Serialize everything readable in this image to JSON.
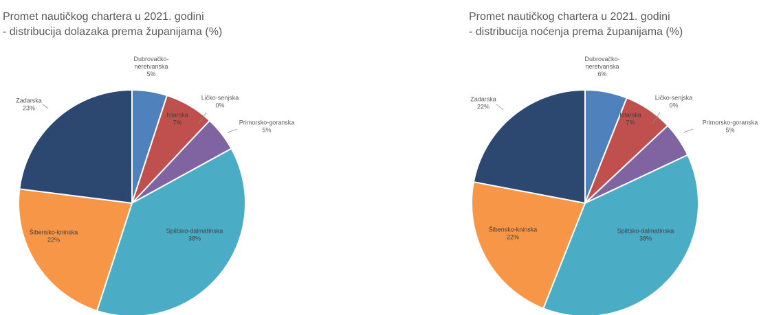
{
  "chart_data": [
    {
      "type": "pie",
      "title": [
        "Promet nautičkog chartera u 2021. godini",
        "- distribucija dolazaka prema županijama (%)"
      ],
      "slices": [
        {
          "name_lines": [
            "Dubrovačko-",
            "neretvanska"
          ],
          "value": 5,
          "label": "5%",
          "color": "#4f81bd"
        },
        {
          "name_lines": [
            "Istarska"
          ],
          "value": 7,
          "label": "7%",
          "color": "#c0504d"
        },
        {
          "name_lines": [
            "Ličko-senjska"
          ],
          "value": 0,
          "label": "0%",
          "color": "#9bbb59"
        },
        {
          "name_lines": [
            "Primorsko-goranska"
          ],
          "value": 5,
          "label": "5%",
          "color": "#8064a2"
        },
        {
          "name_lines": [
            "Splitsko-dalmatinska"
          ],
          "value": 38,
          "label": "38%",
          "color": "#4bacc6"
        },
        {
          "name_lines": [
            "Šibensko-kninska"
          ],
          "value": 22,
          "label": "22%",
          "color": "#f79646"
        },
        {
          "name_lines": [
            "Zadarska"
          ],
          "value": 23,
          "label": "23%",
          "color": "#2c4770"
        }
      ]
    },
    {
      "type": "pie",
      "title": [
        "Promet nautičkog chartera u 2021. godini",
        "- distribucija noćenja prema županijama (%)"
      ],
      "slices": [
        {
          "name_lines": [
            "Dubrovačko-",
            "neretvanska"
          ],
          "value": 6,
          "label": "6%",
          "color": "#4f81bd"
        },
        {
          "name_lines": [
            "Istarska"
          ],
          "value": 7,
          "label": "7%",
          "color": "#c0504d"
        },
        {
          "name_lines": [
            "Ličko-senjska"
          ],
          "value": 0,
          "label": "0%",
          "color": "#9bbb59"
        },
        {
          "name_lines": [
            "Primorsko-goranska"
          ],
          "value": 5,
          "label": "5%",
          "color": "#8064a2"
        },
        {
          "name_lines": [
            "Splitsko-dalmatinska"
          ],
          "value": 38,
          "label": "38%",
          "color": "#4bacc6"
        },
        {
          "name_lines": [
            "Šibensko-kninska"
          ],
          "value": 22,
          "label": "22%",
          "color": "#f79646"
        },
        {
          "name_lines": [
            "Zadarska"
          ],
          "value": 22,
          "label": "22%",
          "color": "#2c4770"
        }
      ]
    }
  ]
}
